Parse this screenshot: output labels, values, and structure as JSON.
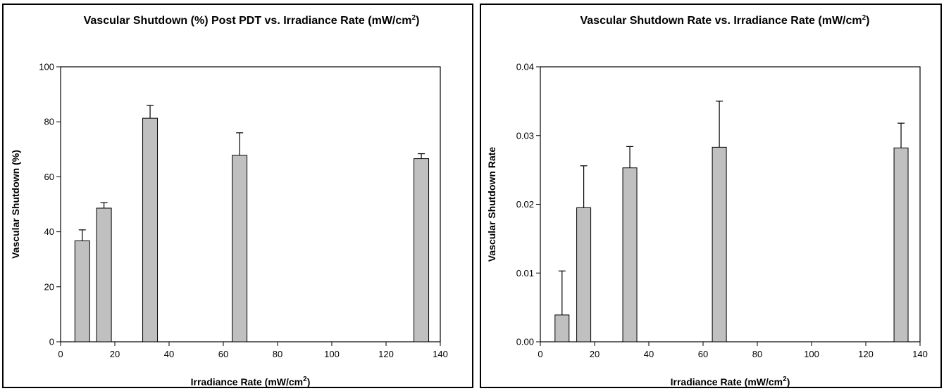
{
  "chart_data": [
    {
      "type": "bar",
      "title": "Vascular Shutdown (%) Post PDT vs. Irradiance Rate (mW/cm",
      "title_sup": "2",
      "title_end": ")",
      "xlabel": "Irradiance Rate (mW/cm",
      "xlabel_sup": "2",
      "xlabel_end": ")",
      "ylabel": "Vascular Shutdown (%)",
      "xlim": [
        0,
        140
      ],
      "ylim": [
        0,
        100
      ],
      "xticks": [
        0,
        20,
        40,
        60,
        80,
        100,
        120,
        140
      ],
      "xtick_labels": [
        "0",
        "20",
        "40",
        "60",
        "80",
        "100",
        "120",
        "140"
      ],
      "yticks": [
        0,
        20,
        40,
        60,
        80,
        100
      ],
      "ytick_labels": [
        "0",
        "20",
        "40",
        "60",
        "80",
        "100"
      ],
      "x": [
        8,
        16,
        33,
        66,
        133
      ],
      "values": [
        36.7,
        48.6,
        81.3,
        67.8,
        66.6
      ],
      "errors": [
        4.0,
        2.0,
        4.7,
        8.2,
        1.8
      ],
      "bar_color": "#c0c0c0",
      "grid": false
    },
    {
      "type": "bar",
      "title": "Vascular Shutdown Rate vs. Irradiance Rate (mW/cm",
      "title_sup": "2",
      "title_end": ")",
      "xlabel": "Irradiance Rate (mW/cm",
      "xlabel_sup": "2",
      "xlabel_end": ")",
      "ylabel": "Vascular Shutdown Rate",
      "xlim": [
        0,
        140
      ],
      "ylim": [
        0,
        0.04
      ],
      "xticks": [
        0,
        20,
        40,
        60,
        80,
        100,
        120,
        140
      ],
      "xtick_labels": [
        "0",
        "20",
        "40",
        "60",
        "80",
        "100",
        "120",
        "140"
      ],
      "yticks": [
        0,
        0.01,
        0.02,
        0.03,
        0.04
      ],
      "ytick_labels": [
        "0.00",
        "0.01",
        "0.02",
        "0.03",
        "0.04"
      ],
      "x": [
        8,
        16,
        33,
        66,
        133
      ],
      "values": [
        0.0039,
        0.0195,
        0.0253,
        0.0283,
        0.0282
      ],
      "errors": [
        0.0064,
        0.0061,
        0.0031,
        0.0067,
        0.0036
      ],
      "bar_color": "#c0c0c0",
      "grid": false
    }
  ]
}
